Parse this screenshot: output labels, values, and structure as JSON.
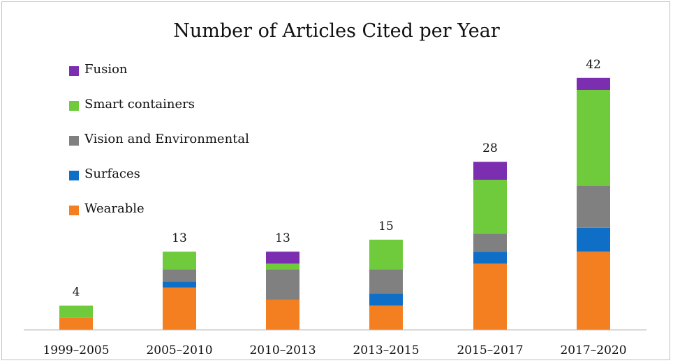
{
  "chart_data": {
    "type": "bar",
    "stacked": true,
    "title": "Number of Articles Cited per Year",
    "xlabel": "",
    "ylabel": "",
    "ylim": [
      0,
      42
    ],
    "grid": false,
    "legend_position": "top-left",
    "categories": [
      "1999–2005",
      "2005–2010",
      "2010–2013",
      "2013–2015",
      "2015–2017",
      "2017–2020"
    ],
    "totals": [
      4,
      13,
      13,
      15,
      28,
      42
    ],
    "series": [
      {
        "name": "Wearable",
        "color": "#f47f20",
        "values": [
          2,
          7,
          5,
          4,
          11,
          13
        ]
      },
      {
        "name": "Surfaces",
        "color": "#0f6fc6",
        "values": [
          0,
          1,
          0,
          2,
          2,
          4
        ]
      },
      {
        "name": "Vision and Environmental",
        "color": "#808080",
        "values": [
          0,
          2,
          5,
          4,
          3,
          7
        ]
      },
      {
        "name": "Smart containers",
        "color": "#6fcb3b",
        "values": [
          2,
          3,
          1,
          5,
          9,
          16
        ]
      },
      {
        "name": "Fusion",
        "color": "#7b2fb0",
        "values": [
          0,
          0,
          2,
          0,
          3,
          2
        ]
      }
    ]
  }
}
